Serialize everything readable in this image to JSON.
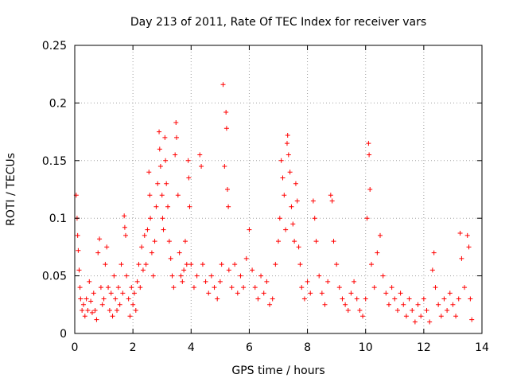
{
  "chart_data": {
    "type": "scatter",
    "title": "Day 213 of 2011, Rate Of TEC Index for receiver vars",
    "xlabel": "GPS time / hours",
    "ylabel": "ROTI / TECUs",
    "xlim": [
      0,
      14
    ],
    "ylim": [
      0,
      0.25
    ],
    "x_ticks": [
      0,
      2,
      4,
      6,
      8,
      10,
      12,
      14
    ],
    "x_tick_labels": [
      "0",
      "2",
      "4",
      "6",
      "8",
      "10",
      "12",
      "14"
    ],
    "y_ticks": [
      0,
      0.05,
      0.1,
      0.15,
      0.2,
      0.25
    ],
    "y_tick_labels": [
      "0",
      "0.05",
      "0.1",
      "0.15",
      "0.2",
      "0.25"
    ],
    "grid": true,
    "marker": "+",
    "series": [
      {
        "name": "ROTI",
        "color": "#ff0000",
        "points": [
          [
            0.05,
            0.12
          ],
          [
            0.08,
            0.1
          ],
          [
            0.1,
            0.085
          ],
          [
            0.12,
            0.072
          ],
          [
            0.15,
            0.055
          ],
          [
            0.18,
            0.04
          ],
          [
            0.2,
            0.03
          ],
          [
            0.25,
            0.02
          ],
          [
            0.3,
            0.025
          ],
          [
            0.35,
            0.015
          ],
          [
            0.4,
            0.03
          ],
          [
            0.45,
            0.02
          ],
          [
            0.5,
            0.045
          ],
          [
            0.55,
            0.028
          ],
          [
            0.6,
            0.018
          ],
          [
            0.65,
            0.035
          ],
          [
            0.7,
            0.02
          ],
          [
            0.75,
            0.012
          ],
          [
            0.8,
            0.07
          ],
          [
            0.85,
            0.082
          ],
          [
            0.9,
            0.04
          ],
          [
            0.95,
            0.025
          ],
          [
            1.0,
            0.03
          ],
          [
            1.05,
            0.06
          ],
          [
            1.1,
            0.075
          ],
          [
            1.15,
            0.04
          ],
          [
            1.2,
            0.02
          ],
          [
            1.25,
            0.035
          ],
          [
            1.3,
            0.015
          ],
          [
            1.35,
            0.05
          ],
          [
            1.4,
            0.03
          ],
          [
            1.45,
            0.02
          ],
          [
            1.5,
            0.04
          ],
          [
            1.55,
            0.025
          ],
          [
            1.6,
            0.06
          ],
          [
            1.65,
            0.035
          ],
          [
            1.7,
            0.102
          ],
          [
            1.72,
            0.092
          ],
          [
            1.75,
            0.085
          ],
          [
            1.78,
            0.05
          ],
          [
            1.85,
            0.03
          ],
          [
            1.9,
            0.015
          ],
          [
            1.95,
            0.04
          ],
          [
            2.0,
            0.025
          ],
          [
            2.05,
            0.035
          ],
          [
            2.1,
            0.02
          ],
          [
            2.15,
            0.045
          ],
          [
            2.2,
            0.06
          ],
          [
            2.25,
            0.04
          ],
          [
            2.3,
            0.075
          ],
          [
            2.35,
            0.055
          ],
          [
            2.4,
            0.085
          ],
          [
            2.45,
            0.06
          ],
          [
            2.5,
            0.09
          ],
          [
            2.55,
            0.14
          ],
          [
            2.58,
            0.12
          ],
          [
            2.6,
            0.1
          ],
          [
            2.65,
            0.07
          ],
          [
            2.7,
            0.05
          ],
          [
            2.75,
            0.08
          ],
          [
            2.8,
            0.11
          ],
          [
            2.85,
            0.13
          ],
          [
            2.9,
            0.175
          ],
          [
            2.92,
            0.16
          ],
          [
            2.95,
            0.145
          ],
          [
            3.0,
            0.12
          ],
          [
            3.02,
            0.1
          ],
          [
            3.05,
            0.09
          ],
          [
            3.1,
            0.17
          ],
          [
            3.12,
            0.15
          ],
          [
            3.15,
            0.13
          ],
          [
            3.2,
            0.11
          ],
          [
            3.25,
            0.08
          ],
          [
            3.3,
            0.065
          ],
          [
            3.35,
            0.05
          ],
          [
            3.4,
            0.04
          ],
          [
            3.45,
            0.155
          ],
          [
            3.48,
            0.183
          ],
          [
            3.5,
            0.17
          ],
          [
            3.55,
            0.12
          ],
          [
            3.6,
            0.07
          ],
          [
            3.65,
            0.05
          ],
          [
            3.7,
            0.045
          ],
          [
            3.75,
            0.055
          ],
          [
            3.8,
            0.08
          ],
          [
            3.85,
            0.06
          ],
          [
            3.9,
            0.15
          ],
          [
            3.92,
            0.135
          ],
          [
            3.95,
            0.11
          ],
          [
            4.0,
            0.06
          ],
          [
            4.1,
            0.04
          ],
          [
            4.2,
            0.05
          ],
          [
            4.3,
            0.155
          ],
          [
            4.35,
            0.145
          ],
          [
            4.4,
            0.06
          ],
          [
            4.5,
            0.045
          ],
          [
            4.6,
            0.035
          ],
          [
            4.7,
            0.05
          ],
          [
            4.8,
            0.04
          ],
          [
            4.9,
            0.03
          ],
          [
            5.0,
            0.045
          ],
          [
            5.05,
            0.06
          ],
          [
            5.1,
            0.216
          ],
          [
            5.15,
            0.145
          ],
          [
            5.2,
            0.192
          ],
          [
            5.22,
            0.178
          ],
          [
            5.25,
            0.125
          ],
          [
            5.28,
            0.11
          ],
          [
            5.3,
            0.055
          ],
          [
            5.4,
            0.04
          ],
          [
            5.5,
            0.06
          ],
          [
            5.6,
            0.035
          ],
          [
            5.7,
            0.05
          ],
          [
            5.8,
            0.04
          ],
          [
            5.9,
            0.065
          ],
          [
            6.0,
            0.09
          ],
          [
            6.1,
            0.055
          ],
          [
            6.2,
            0.04
          ],
          [
            6.3,
            0.03
          ],
          [
            6.4,
            0.05
          ],
          [
            6.5,
            0.035
          ],
          [
            6.6,
            0.045
          ],
          [
            6.7,
            0.025
          ],
          [
            6.8,
            0.03
          ],
          [
            6.9,
            0.06
          ],
          [
            7.0,
            0.08
          ],
          [
            7.05,
            0.1
          ],
          [
            7.1,
            0.15
          ],
          [
            7.15,
            0.135
          ],
          [
            7.2,
            0.12
          ],
          [
            7.25,
            0.09
          ],
          [
            7.3,
            0.165
          ],
          [
            7.32,
            0.172
          ],
          [
            7.35,
            0.155
          ],
          [
            7.4,
            0.14
          ],
          [
            7.45,
            0.11
          ],
          [
            7.5,
            0.095
          ],
          [
            7.55,
            0.08
          ],
          [
            7.6,
            0.13
          ],
          [
            7.65,
            0.115
          ],
          [
            7.7,
            0.075
          ],
          [
            7.75,
            0.06
          ],
          [
            7.8,
            0.04
          ],
          [
            7.9,
            0.03
          ],
          [
            8.0,
            0.045
          ],
          [
            8.1,
            0.035
          ],
          [
            8.2,
            0.115
          ],
          [
            8.25,
            0.1
          ],
          [
            8.3,
            0.08
          ],
          [
            8.4,
            0.05
          ],
          [
            8.5,
            0.035
          ],
          [
            8.6,
            0.025
          ],
          [
            8.7,
            0.045
          ],
          [
            8.8,
            0.12
          ],
          [
            8.85,
            0.115
          ],
          [
            8.9,
            0.08
          ],
          [
            9.0,
            0.06
          ],
          [
            9.1,
            0.04
          ],
          [
            9.2,
            0.03
          ],
          [
            9.3,
            0.025
          ],
          [
            9.4,
            0.02
          ],
          [
            9.5,
            0.035
          ],
          [
            9.6,
            0.045
          ],
          [
            9.7,
            0.03
          ],
          [
            9.8,
            0.02
          ],
          [
            9.9,
            0.015
          ],
          [
            10.0,
            0.03
          ],
          [
            10.05,
            0.1
          ],
          [
            10.1,
            0.165
          ],
          [
            10.12,
            0.155
          ],
          [
            10.15,
            0.125
          ],
          [
            10.2,
            0.06
          ],
          [
            10.3,
            0.04
          ],
          [
            10.4,
            0.07
          ],
          [
            10.5,
            0.085
          ],
          [
            10.6,
            0.05
          ],
          [
            10.7,
            0.035
          ],
          [
            10.8,
            0.025
          ],
          [
            10.9,
            0.04
          ],
          [
            11.0,
            0.03
          ],
          [
            11.1,
            0.02
          ],
          [
            11.2,
            0.035
          ],
          [
            11.3,
            0.025
          ],
          [
            11.4,
            0.015
          ],
          [
            11.5,
            0.03
          ],
          [
            11.6,
            0.02
          ],
          [
            11.7,
            0.01
          ],
          [
            11.8,
            0.025
          ],
          [
            11.9,
            0.015
          ],
          [
            12.0,
            0.03
          ],
          [
            12.1,
            0.02
          ],
          [
            12.2,
            0.01
          ],
          [
            12.3,
            0.055
          ],
          [
            12.35,
            0.07
          ],
          [
            12.4,
            0.04
          ],
          [
            12.5,
            0.025
          ],
          [
            12.6,
            0.015
          ],
          [
            12.7,
            0.03
          ],
          [
            12.8,
            0.02
          ],
          [
            12.9,
            0.035
          ],
          [
            13.0,
            0.025
          ],
          [
            13.1,
            0.015
          ],
          [
            13.2,
            0.03
          ],
          [
            13.25,
            0.087
          ],
          [
            13.3,
            0.065
          ],
          [
            13.4,
            0.04
          ],
          [
            13.5,
            0.085
          ],
          [
            13.55,
            0.075
          ],
          [
            13.6,
            0.03
          ],
          [
            13.65,
            0.012
          ]
        ]
      }
    ]
  }
}
